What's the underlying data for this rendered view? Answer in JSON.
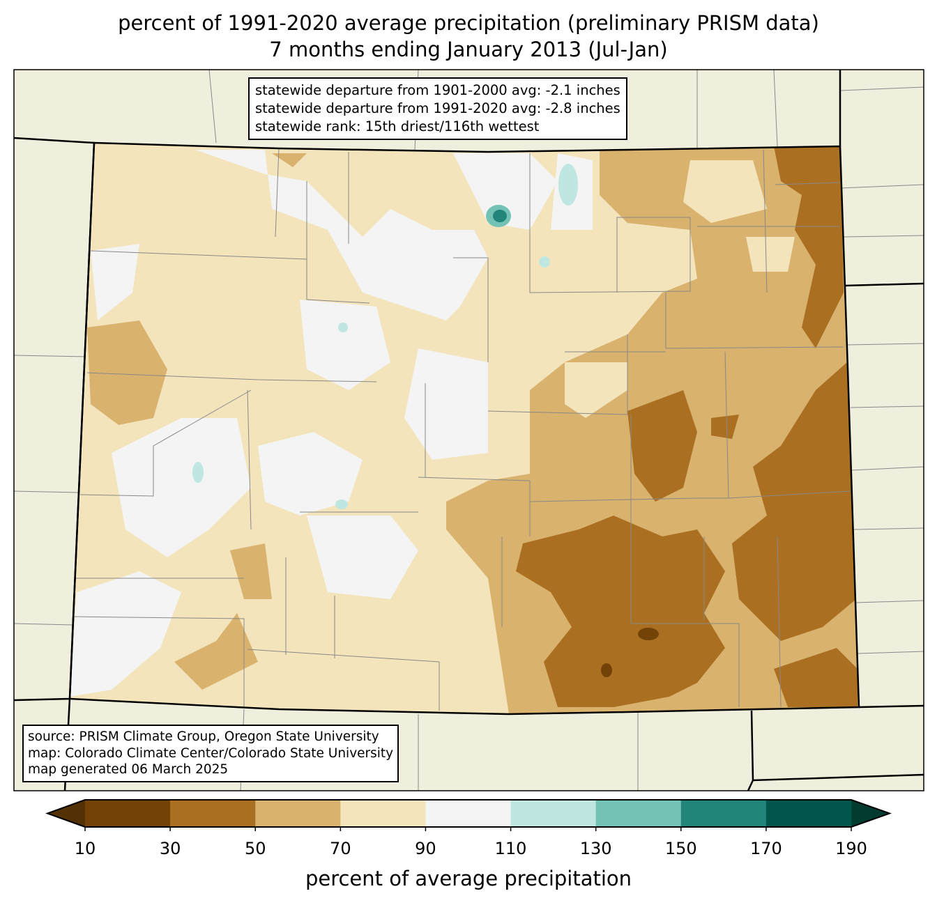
{
  "title": {
    "line1": "percent of 1991-2020 average precipitation (preliminary PRISM data)",
    "line2": "7 months ending January 2013 (Jul-Jan)"
  },
  "stats_box": {
    "line1": "statewide departure from 1901-2000 avg: -2.1 inches",
    "line2": "statewide departure from 1991-2020 avg: -2.8 inches",
    "line3": "statewide rank: 15th driest/116th wettest"
  },
  "source_box": {
    "line1": "source: PRISM Climate Group, Oregon State University",
    "line2": "map: Colorado Climate Center/Colorado State University",
    "line3": "map generated 06 March 2025"
  },
  "colorbar": {
    "label": "percent of average precipitation",
    "ticks": [
      "10",
      "30",
      "50",
      "70",
      "90",
      "110",
      "130",
      "150",
      "170",
      "190"
    ],
    "under_color": "#543005",
    "over_color": "#023b30",
    "colors": [
      "#724207",
      "#ab6f22",
      "#d9b26d",
      "#f3e4bc",
      "#f3f4f3",
      "#bfe6e1",
      "#72c3b6",
      "#218579",
      "#02554b"
    ]
  },
  "map_colors": {
    "background": "#f0eedc",
    "state_base": "#f3e4bc"
  }
}
